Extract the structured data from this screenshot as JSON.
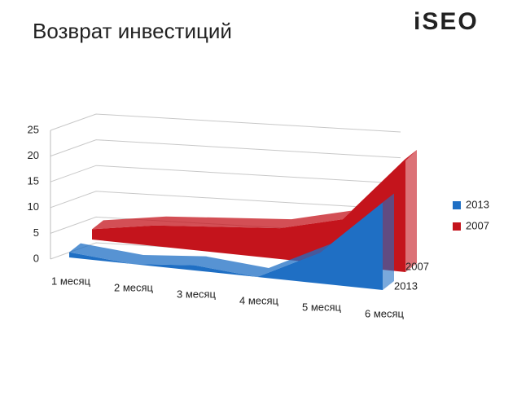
{
  "header": {
    "logo": "iSEO"
  },
  "chart_data": {
    "type": "area3d",
    "title": "Возврат инвестиций",
    "categories": [
      "1 месяц",
      "2 месяц",
      "3 месяц",
      "4 месяц",
      "5 месяц",
      "6 месяц"
    ],
    "series": [
      {
        "name": "2013",
        "color": "#1f6fc4",
        "values": [
          1,
          0,
          1,
          0,
          6,
          17
        ]
      },
      {
        "name": "2007",
        "color": "#c4141c",
        "values": [
          2,
          4,
          5,
          6,
          9,
          22
        ]
      }
    ],
    "ylim": [
      0,
      25
    ],
    "yticks": [
      0,
      5,
      10,
      15,
      20,
      25
    ],
    "grid": true,
    "legend": "right"
  }
}
